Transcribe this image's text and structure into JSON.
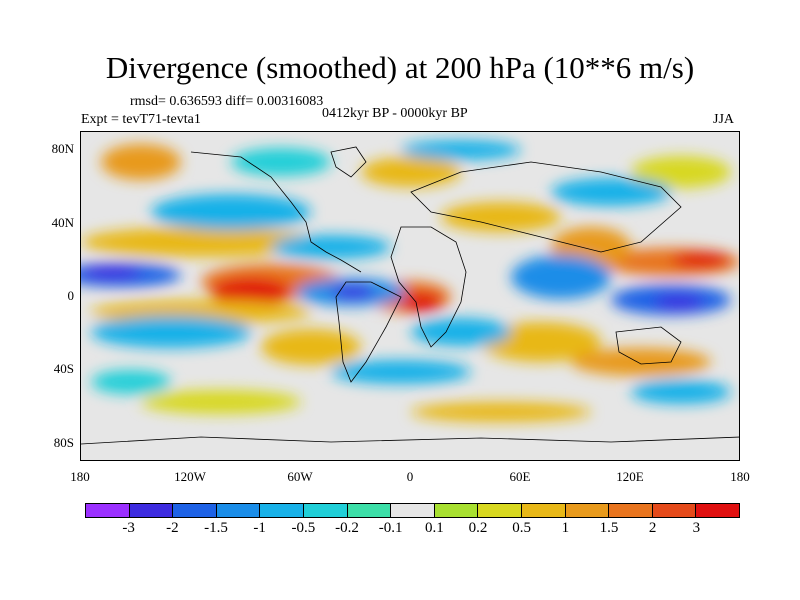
{
  "title": "Divergence (smoothed) at 200 hPa (10**6 m/s)",
  "stats": "rmsd= 0.636593 diff= 0.00316083",
  "experiment": "Expt = tevT71-tevta1",
  "period": "0412kyr BP - 0000kyr BP",
  "season": "JJA",
  "map": {
    "projection": "cylindrical equidistant",
    "lon_range": [
      -180,
      180
    ],
    "lat_range": [
      -90,
      90
    ],
    "lat_ticks": [
      {
        "value": 80,
        "label": "80N"
      },
      {
        "value": 40,
        "label": "40N"
      },
      {
        "value": 0,
        "label": "0"
      },
      {
        "value": -40,
        "label": "40S"
      },
      {
        "value": -80,
        "label": "80S"
      }
    ],
    "lon_ticks": [
      {
        "value": -180,
        "label": "180"
      },
      {
        "value": -120,
        "label": "120W"
      },
      {
        "value": -60,
        "label": "60W"
      },
      {
        "value": 0,
        "label": "0"
      },
      {
        "value": 60,
        "label": "60E"
      },
      {
        "value": 120,
        "label": "120E"
      },
      {
        "value": 180,
        "label": "180"
      }
    ],
    "features": [
      {
        "name": "negative-core-central-pacific",
        "lon": -170,
        "lat": 5,
        "value": -2
      },
      {
        "name": "positive-core-east-pacific",
        "lon": -95,
        "lat": 0,
        "value": 3
      },
      {
        "name": "negative-core-atlantic",
        "lon": -35,
        "lat": 0,
        "value": -2.5
      },
      {
        "name": "positive-core-west-africa",
        "lon": 5,
        "lat": 0,
        "value": 2.5
      },
      {
        "name": "negative-core-west-pacific",
        "lon": 150,
        "lat": -2,
        "value": -2.5
      },
      {
        "name": "positive-core-north-pacific",
        "lon": 150,
        "lat": 18,
        "value": 2
      }
    ]
  },
  "colorbar": {
    "colors": [
      "#9b30ff",
      "#3d2be0",
      "#1e62e6",
      "#1a8de8",
      "#18b1e8",
      "#20cfd8",
      "#3cdfa8",
      "#e6e6e6",
      "#a8e030",
      "#d8d820",
      "#e8b818",
      "#e89a1c",
      "#e8741e",
      "#e54a1a",
      "#e01010"
    ],
    "labels": [
      "-3",
      "-2",
      "-1.5",
      "-1",
      "-0.5",
      "-0.2",
      "-0.1",
      "0.1",
      "0.2",
      "0.5",
      "1",
      "1.5",
      "2",
      "3"
    ]
  }
}
